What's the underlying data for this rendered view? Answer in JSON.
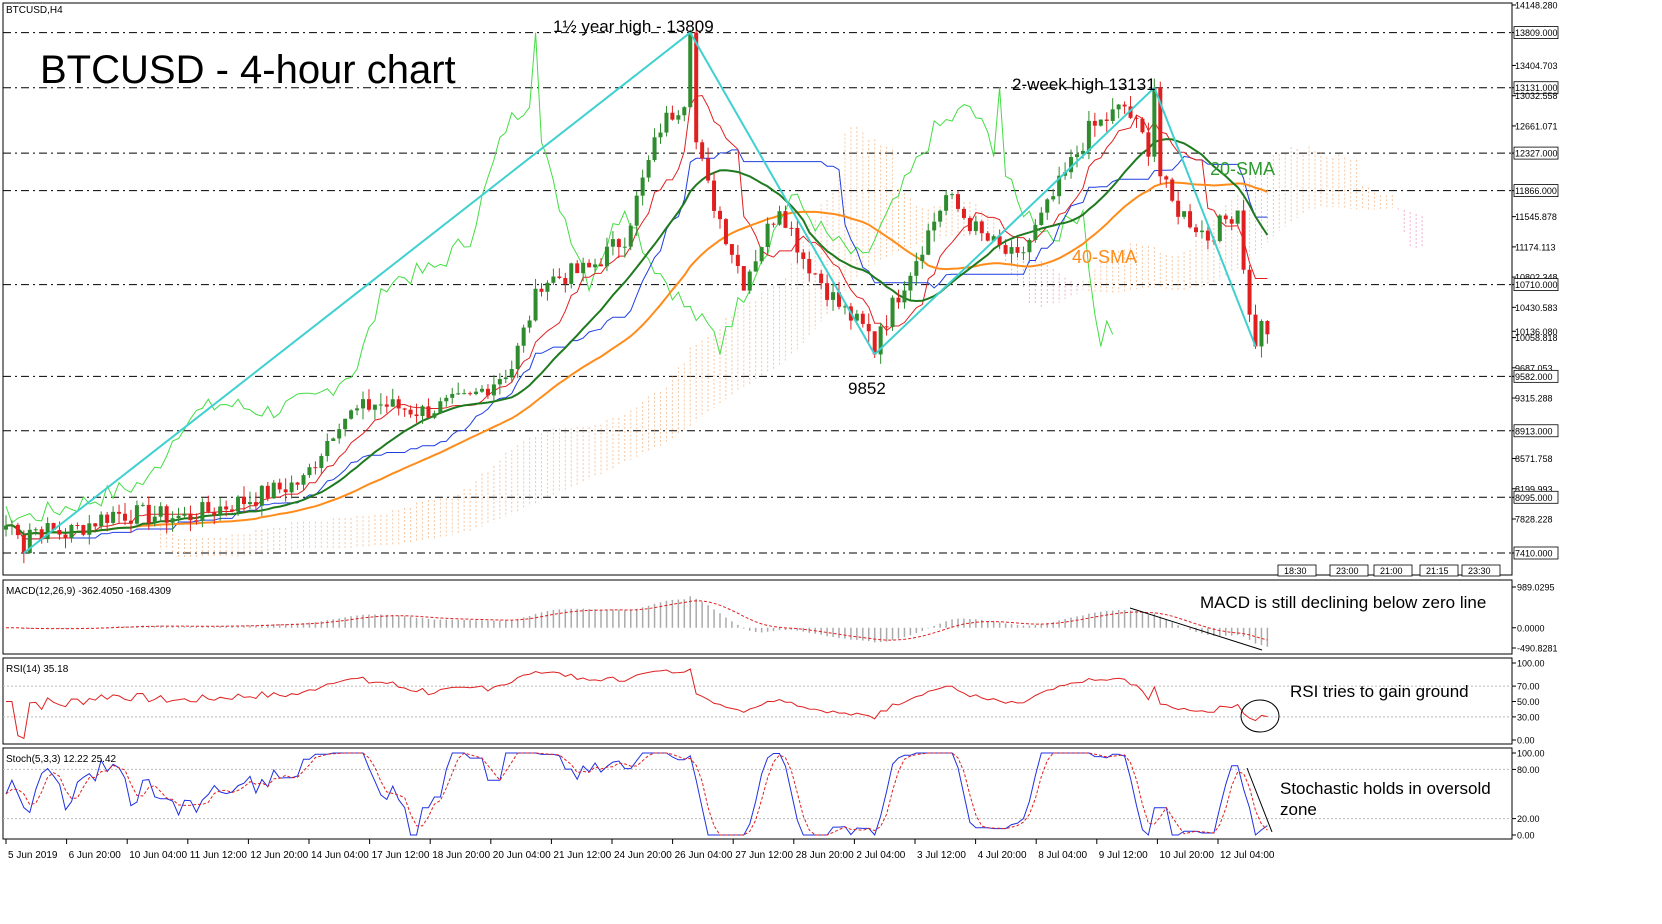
{
  "symbol_label": "BTCUSD,H4",
  "headline": "BTCUSD - 4-hour chart",
  "annotations": {
    "high_18m": "1½ year high - 13809",
    "high_2w": "2-week high 13131",
    "low": "9852",
    "sma20": "20-SMA",
    "sma40": "40-SMA",
    "macd_note": "MACD is still declining below zero line",
    "rsi_note": "RSI tries to gain ground",
    "stoch_note_1": "Stochastic holds in oversold",
    "stoch_note_2": "zone"
  },
  "colors": {
    "bull": "#2e8b2e",
    "bear": "#e02020",
    "sma20": "#1f7a1f",
    "sma40": "#ff8c1a",
    "tenkan": "#e02020",
    "kijun": "#1f3fe0",
    "chikou": "#44dd44",
    "trend": "#40d0d0"
  },
  "chart_data": [
    {
      "type": "candlestick",
      "title": "BTCUSD - 4-hour chart",
      "ylim": [
        7410,
        14148
      ],
      "y_ticks": [
        "14148.280",
        "13809.000",
        "13404.703",
        "13131.000",
        "13032.558",
        "12661.071",
        "12327.000",
        "11866.000",
        "11545.878",
        "11174.113",
        "10802.348",
        "10710.000",
        "10430.583",
        "10136.080",
        "10058.818",
        "9687.053",
        "9582.000",
        "9315.288",
        "8913.000",
        "8571.758",
        "8199.993",
        "8095.000",
        "7828.228",
        "7410.000"
      ],
      "horizontal_levels": [
        13809,
        13131,
        12327,
        11866,
        10710,
        9582,
        8913,
        8095,
        7410
      ],
      "x_labels": [
        "5 Jun 2019",
        "6 Jun 20:00",
        "10 Jun 04:00",
        "11 Jun 12:00",
        "12 Jun 20:00",
        "14 Jun 04:00",
        "17 Jun 12:00",
        "18 Jun 20:00",
        "20 Jun 04:00",
        "21 Jun 12:00",
        "24 Jun 20:00",
        "26 Jun 04:00",
        "27 Jun 12:00",
        "28 Jun 20:00",
        "2 Jul 04:00",
        "3 Jul 12:00",
        "4 Jul 20:00",
        "8 Jul 04:00",
        "9 Jul 12:00",
        "10 Jul 20:00",
        "12 Jul 04:00"
      ],
      "time_boxes": [
        "18:30",
        "23:00",
        "21:00",
        "21:15",
        "23:30"
      ],
      "close_anchors": [
        {
          "bar": 0,
          "v": 7750
        },
        {
          "bar": 10,
          "v": 7650
        },
        {
          "bar": 18,
          "v": 7900
        },
        {
          "bar": 30,
          "v": 7850
        },
        {
          "bar": 40,
          "v": 8050
        },
        {
          "bar": 50,
          "v": 8300
        },
        {
          "bar": 56,
          "v": 9050
        },
        {
          "bar": 62,
          "v": 9250
        },
        {
          "bar": 70,
          "v": 9150
        },
        {
          "bar": 78,
          "v": 9300
        },
        {
          "bar": 85,
          "v": 9700
        },
        {
          "bar": 90,
          "v": 10750
        },
        {
          "bar": 98,
          "v": 10900
        },
        {
          "bar": 104,
          "v": 11300
        },
        {
          "bar": 110,
          "v": 12650
        },
        {
          "bar": 114,
          "v": 13000
        },
        {
          "bar": 118,
          "v": 11900
        },
        {
          "bar": 124,
          "v": 10750
        },
        {
          "bar": 130,
          "v": 11700
        },
        {
          "bar": 134,
          "v": 11050
        },
        {
          "bar": 140,
          "v": 10450
        },
        {
          "bar": 145,
          "v": 10100
        },
        {
          "bar": 148,
          "v": 10300
        },
        {
          "bar": 152,
          "v": 10900
        },
        {
          "bar": 158,
          "v": 11800
        },
        {
          "bar": 164,
          "v": 11300
        },
        {
          "bar": 170,
          "v": 11000
        },
        {
          "bar": 175,
          "v": 11650
        },
        {
          "bar": 182,
          "v": 12600
        },
        {
          "bar": 188,
          "v": 12900
        },
        {
          "bar": 192,
          "v": 12400
        },
        {
          "bar": 196,
          "v": 11700
        },
        {
          "bar": 202,
          "v": 11300
        },
        {
          "bar": 207,
          "v": 11650
        },
        {
          "bar": 209,
          "v": 10300
        },
        {
          "bar": 212,
          "v": 10150
        }
      ],
      "highlight_points": [
        {
          "bar": 3,
          "v": 7410
        },
        {
          "bar": 115,
          "v": 13809
        },
        {
          "bar": 146,
          "v": 9852
        },
        {
          "bar": 193,
          "v": 13131
        },
        {
          "bar": 210,
          "v": 9950
        }
      ],
      "series": [
        {
          "name": "20-SMA",
          "period": 20
        },
        {
          "name": "40-SMA",
          "period": 40
        }
      ]
    },
    {
      "type": "bar",
      "title": "MACD(12,26,9) -362.4050 -168.4309",
      "y_ticks": [
        "989.0295",
        "0.0000",
        "-490.8281"
      ],
      "ylim": [
        -490.8281,
        989.0295
      ]
    },
    {
      "type": "line",
      "title": "RSI(14) 35.18",
      "y_ticks": [
        "100.00",
        "70.00",
        "50.00",
        "30.00",
        "0.00"
      ],
      "ylim": [
        0,
        100
      ]
    },
    {
      "type": "line",
      "title": "Stoch(5,3,3) 12.22 25.42",
      "y_ticks": [
        "100.00",
        "80.00",
        "20.00",
        "0.00"
      ],
      "ylim": [
        0,
        100
      ]
    }
  ]
}
